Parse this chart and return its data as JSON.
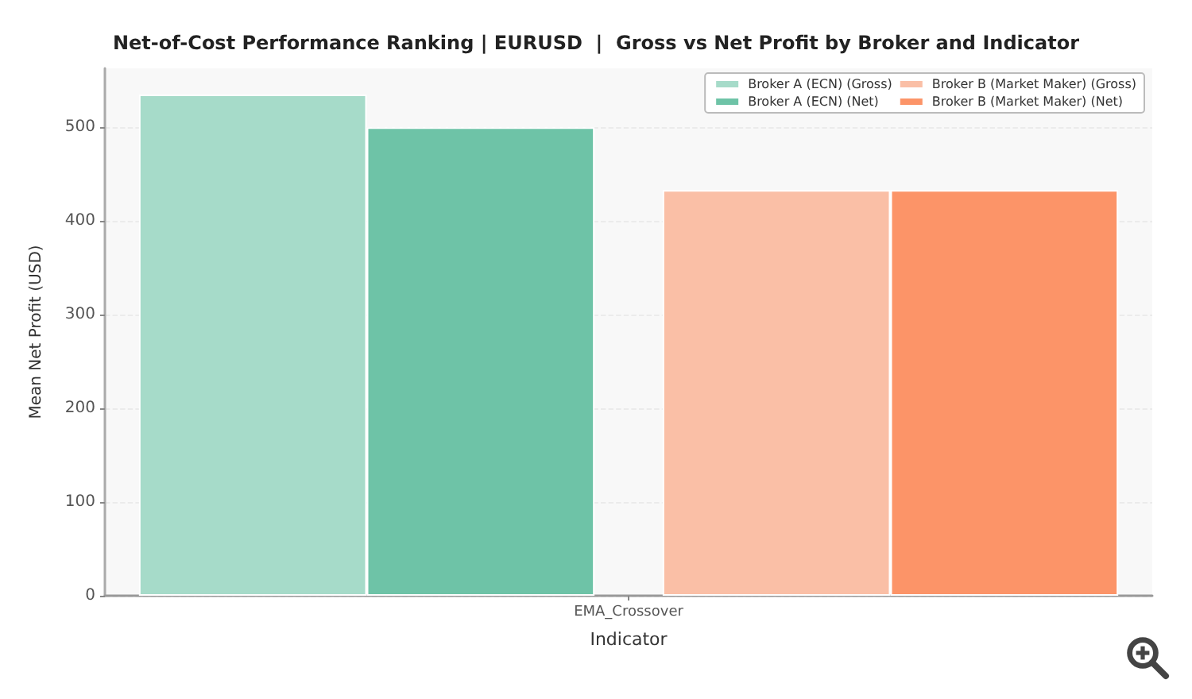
{
  "chart_data": {
    "type": "bar",
    "title": "Net-of-Cost Performance Ranking | EURUSD  |  Gross vs Net Profit by Broker and Indicator",
    "xlabel": "Indicator",
    "ylabel": "Mean Net Profit (USD)",
    "categories": [
      "EMA_Crossover"
    ],
    "series": [
      {
        "name": "Broker A (ECN) (Gross)",
        "color": "#a6dbc9",
        "values": [
          535
        ]
      },
      {
        "name": "Broker A (ECN) (Net)",
        "color": "#6ec3a7",
        "values": [
          500
        ]
      },
      {
        "name": "Broker B (Market Maker) (Gross)",
        "color": "#fabfa6",
        "values": [
          433
        ]
      },
      {
        "name": "Broker B (Market Maker) (Net)",
        "color": "#fc9468",
        "values": [
          433
        ]
      }
    ],
    "ylim": [
      0,
      563
    ],
    "yticks": [
      0,
      100,
      200,
      300,
      400,
      500
    ],
    "grid": "y",
    "legend": "top right"
  }
}
